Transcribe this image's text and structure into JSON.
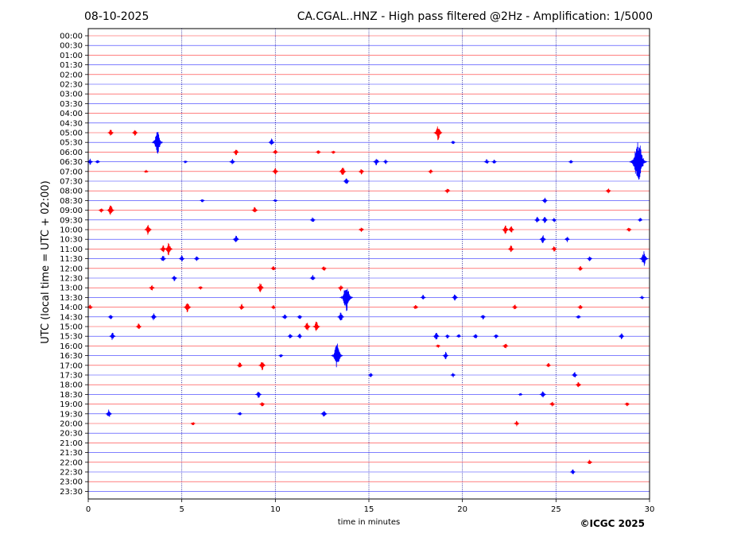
{
  "header": {
    "date": "08-10-2025",
    "title": "CA.CGAL..HNZ - High pass filtered @2Hz - Amplification: 1/5000"
  },
  "footer": {
    "copyright": "©ICGC 2025"
  },
  "colors": {
    "trace_even": "#ff0000",
    "trace_odd": "#0000ff",
    "vgrid": "#00008b",
    "axis": "#000000"
  },
  "chart_data": {
    "type": "line",
    "title": "CA.CGAL..HNZ - High pass filtered @2Hz - Amplification: 1/5000",
    "xlabel": "time in minutes",
    "ylabel": "UTC (local time = UTC + 02:00)",
    "xlim": [
      0,
      30
    ],
    "x_ticks": [
      "0",
      "5",
      "10",
      "15",
      "20",
      "25",
      "30"
    ],
    "x_grid_lines": [
      5,
      10,
      15,
      20,
      25
    ],
    "rows": [
      "00:00",
      "00:30",
      "01:00",
      "01:30",
      "02:00",
      "02:30",
      "03:00",
      "03:30",
      "04:00",
      "04:30",
      "05:00",
      "05:30",
      "06:00",
      "06:30",
      "07:00",
      "07:30",
      "08:00",
      "08:30",
      "09:00",
      "09:30",
      "10:00",
      "10:30",
      "11:00",
      "11:30",
      "12:00",
      "12:30",
      "13:00",
      "13:30",
      "14:00",
      "14:30",
      "15:00",
      "15:30",
      "16:00",
      "16:30",
      "17:00",
      "17:30",
      "18:00",
      "18:30",
      "19:00",
      "19:30",
      "20:00",
      "20:30",
      "21:00",
      "21:30",
      "22:00",
      "22:30",
      "23:00",
      "23:30"
    ],
    "row_colors": "alternating red / blue",
    "events": [
      {
        "row": "05:00",
        "t": 1.2,
        "amp": 0.4
      },
      {
        "row": "05:00",
        "t": 2.5,
        "amp": 0.35
      },
      {
        "row": "05:00",
        "t": 18.7,
        "amp": 0.8
      },
      {
        "row": "05:30",
        "t": 3.7,
        "amp": 1.2
      },
      {
        "row": "05:30",
        "t": 9.8,
        "amp": 0.4
      },
      {
        "row": "05:30",
        "t": 19.5,
        "amp": 0.2
      },
      {
        "row": "06:00",
        "t": 7.9,
        "amp": 0.35
      },
      {
        "row": "06:00",
        "t": 10.0,
        "amp": 0.3
      },
      {
        "row": "06:00",
        "t": 12.3,
        "amp": 0.25
      },
      {
        "row": "06:00",
        "t": 13.1,
        "amp": 0.2
      },
      {
        "row": "06:30",
        "t": 0.1,
        "amp": 0.35
      },
      {
        "row": "06:30",
        "t": 0.5,
        "amp": 0.25
      },
      {
        "row": "06:30",
        "t": 5.2,
        "amp": 0.15
      },
      {
        "row": "06:30",
        "t": 7.7,
        "amp": 0.35
      },
      {
        "row": "06:30",
        "t": 15.4,
        "amp": 0.45
      },
      {
        "row": "06:30",
        "t": 15.9,
        "amp": 0.25
      },
      {
        "row": "06:30",
        "t": 21.3,
        "amp": 0.3
      },
      {
        "row": "06:30",
        "t": 21.7,
        "amp": 0.25
      },
      {
        "row": "06:30",
        "t": 25.8,
        "amp": 0.2
      },
      {
        "row": "06:30",
        "t": 29.4,
        "amp": 2.2
      },
      {
        "row": "07:00",
        "t": 3.1,
        "amp": 0.2
      },
      {
        "row": "07:00",
        "t": 10.0,
        "amp": 0.4
      },
      {
        "row": "07:00",
        "t": 13.6,
        "amp": 0.55
      },
      {
        "row": "07:00",
        "t": 14.6,
        "amp": 0.35
      },
      {
        "row": "07:00",
        "t": 18.3,
        "amp": 0.25
      },
      {
        "row": "07:30",
        "t": 13.8,
        "amp": 0.4
      },
      {
        "row": "08:00",
        "t": 19.2,
        "amp": 0.35
      },
      {
        "row": "08:00",
        "t": 27.8,
        "amp": 0.3
      },
      {
        "row": "08:30",
        "t": 6.1,
        "amp": 0.2
      },
      {
        "row": "08:30",
        "t": 10.0,
        "amp": 0.2
      },
      {
        "row": "08:30",
        "t": 24.4,
        "amp": 0.35
      },
      {
        "row": "09:00",
        "t": 0.7,
        "amp": 0.3
      },
      {
        "row": "09:00",
        "t": 1.2,
        "amp": 0.6
      },
      {
        "row": "09:00",
        "t": 8.9,
        "amp": 0.4
      },
      {
        "row": "09:30",
        "t": 12.0,
        "amp": 0.3
      },
      {
        "row": "09:30",
        "t": 24.0,
        "amp": 0.35
      },
      {
        "row": "09:30",
        "t": 24.4,
        "amp": 0.4
      },
      {
        "row": "09:30",
        "t": 24.9,
        "amp": 0.25
      },
      {
        "row": "09:30",
        "t": 29.5,
        "amp": 0.25
      },
      {
        "row": "10:00",
        "t": 3.2,
        "amp": 0.6
      },
      {
        "row": "10:00",
        "t": 14.6,
        "amp": 0.3
      },
      {
        "row": "10:00",
        "t": 22.3,
        "amp": 0.5
      },
      {
        "row": "10:00",
        "t": 22.6,
        "amp": 0.45
      },
      {
        "row": "10:00",
        "t": 28.9,
        "amp": 0.3
      },
      {
        "row": "10:30",
        "t": 7.9,
        "amp": 0.45
      },
      {
        "row": "10:30",
        "t": 24.3,
        "amp": 0.5
      },
      {
        "row": "10:30",
        "t": 25.6,
        "amp": 0.3
      },
      {
        "row": "11:00",
        "t": 4.0,
        "amp": 0.45
      },
      {
        "row": "11:00",
        "t": 4.3,
        "amp": 0.7
      },
      {
        "row": "11:00",
        "t": 22.6,
        "amp": 0.4
      },
      {
        "row": "11:00",
        "t": 24.9,
        "amp": 0.3
      },
      {
        "row": "11:30",
        "t": 4.0,
        "amp": 0.4
      },
      {
        "row": "11:30",
        "t": 5.0,
        "amp": 0.35
      },
      {
        "row": "11:30",
        "t": 5.8,
        "amp": 0.3
      },
      {
        "row": "11:30",
        "t": 26.8,
        "amp": 0.3
      },
      {
        "row": "11:30",
        "t": 29.7,
        "amp": 0.8
      },
      {
        "row": "12:00",
        "t": 9.9,
        "amp": 0.3
      },
      {
        "row": "12:00",
        "t": 12.6,
        "amp": 0.3
      },
      {
        "row": "12:00",
        "t": 26.3,
        "amp": 0.3
      },
      {
        "row": "12:30",
        "t": 4.6,
        "amp": 0.35
      },
      {
        "row": "12:30",
        "t": 12.0,
        "amp": 0.35
      },
      {
        "row": "13:00",
        "t": 3.4,
        "amp": 0.35
      },
      {
        "row": "13:00",
        "t": 6.0,
        "amp": 0.25
      },
      {
        "row": "13:00",
        "t": 9.2,
        "amp": 0.55
      },
      {
        "row": "13:00",
        "t": 13.5,
        "amp": 0.35
      },
      {
        "row": "13:30",
        "t": 13.8,
        "amp": 1.5
      },
      {
        "row": "13:30",
        "t": 17.9,
        "amp": 0.3
      },
      {
        "row": "13:30",
        "t": 19.6,
        "amp": 0.4
      },
      {
        "row": "13:30",
        "t": 29.6,
        "amp": 0.2
      },
      {
        "row": "14:00",
        "t": 0.1,
        "amp": 0.3
      },
      {
        "row": "14:00",
        "t": 5.3,
        "amp": 0.6
      },
      {
        "row": "14:00",
        "t": 8.2,
        "amp": 0.35
      },
      {
        "row": "14:00",
        "t": 9.9,
        "amp": 0.25
      },
      {
        "row": "14:00",
        "t": 17.5,
        "amp": 0.3
      },
      {
        "row": "14:00",
        "t": 22.8,
        "amp": 0.3
      },
      {
        "row": "14:00",
        "t": 26.3,
        "amp": 0.3
      },
      {
        "row": "14:30",
        "t": 1.2,
        "amp": 0.3
      },
      {
        "row": "14:30",
        "t": 3.5,
        "amp": 0.4
      },
      {
        "row": "14:30",
        "t": 10.5,
        "amp": 0.35
      },
      {
        "row": "14:30",
        "t": 11.3,
        "amp": 0.3
      },
      {
        "row": "14:30",
        "t": 13.5,
        "amp": 0.55
      },
      {
        "row": "14:30",
        "t": 21.1,
        "amp": 0.3
      },
      {
        "row": "14:30",
        "t": 26.2,
        "amp": 0.3
      },
      {
        "row": "15:00",
        "t": 2.7,
        "amp": 0.35
      },
      {
        "row": "15:00",
        "t": 11.7,
        "amp": 0.5
      },
      {
        "row": "15:00",
        "t": 12.2,
        "amp": 0.6
      },
      {
        "row": "15:30",
        "t": 1.3,
        "amp": 0.45
      },
      {
        "row": "15:30",
        "t": 10.8,
        "amp": 0.3
      },
      {
        "row": "15:30",
        "t": 11.3,
        "amp": 0.3
      },
      {
        "row": "15:30",
        "t": 18.6,
        "amp": 0.45
      },
      {
        "row": "15:30",
        "t": 19.2,
        "amp": 0.25
      },
      {
        "row": "15:30",
        "t": 19.8,
        "amp": 0.25
      },
      {
        "row": "15:30",
        "t": 20.7,
        "amp": 0.3
      },
      {
        "row": "15:30",
        "t": 21.8,
        "amp": 0.3
      },
      {
        "row": "15:30",
        "t": 28.5,
        "amp": 0.35
      },
      {
        "row": "16:00",
        "t": 18.7,
        "amp": 0.2
      },
      {
        "row": "16:00",
        "t": 22.3,
        "amp": 0.35
      },
      {
        "row": "16:30",
        "t": 10.3,
        "amp": 0.2
      },
      {
        "row": "16:30",
        "t": 13.3,
        "amp": 1.3
      },
      {
        "row": "16:30",
        "t": 19.1,
        "amp": 0.4
      },
      {
        "row": "17:00",
        "t": 8.1,
        "amp": 0.35
      },
      {
        "row": "17:00",
        "t": 9.3,
        "amp": 0.55
      },
      {
        "row": "17:00",
        "t": 24.6,
        "amp": 0.25
      },
      {
        "row": "17:30",
        "t": 15.1,
        "amp": 0.25
      },
      {
        "row": "17:30",
        "t": 19.5,
        "amp": 0.25
      },
      {
        "row": "17:30",
        "t": 26.0,
        "amp": 0.35
      },
      {
        "row": "18:00",
        "t": 26.2,
        "amp": 0.35
      },
      {
        "row": "18:30",
        "t": 9.1,
        "amp": 0.45
      },
      {
        "row": "18:30",
        "t": 23.1,
        "amp": 0.15
      },
      {
        "row": "18:30",
        "t": 24.3,
        "amp": 0.45
      },
      {
        "row": "19:00",
        "t": 9.3,
        "amp": 0.3
      },
      {
        "row": "19:00",
        "t": 24.8,
        "amp": 0.3
      },
      {
        "row": "19:00",
        "t": 28.8,
        "amp": 0.25
      },
      {
        "row": "19:30",
        "t": 1.1,
        "amp": 0.45
      },
      {
        "row": "19:30",
        "t": 8.1,
        "amp": 0.25
      },
      {
        "row": "19:30",
        "t": 12.6,
        "amp": 0.45
      },
      {
        "row": "20:00",
        "t": 5.6,
        "amp": 0.2
      },
      {
        "row": "20:00",
        "t": 22.9,
        "amp": 0.3
      },
      {
        "row": "22:00",
        "t": 26.8,
        "amp": 0.3
      },
      {
        "row": "22:30",
        "t": 25.9,
        "amp": 0.3
      }
    ]
  }
}
